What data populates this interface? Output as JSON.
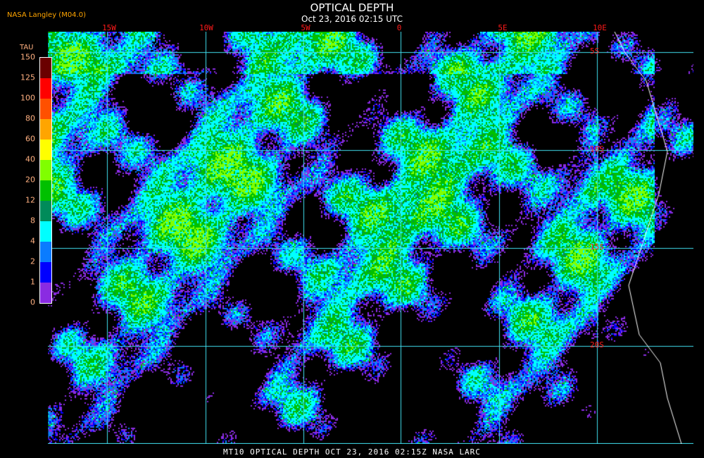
{
  "header": {
    "title": "OPTICAL DEPTH",
    "subtitle": "Oct 23, 2016 02:15 UTC",
    "credit": "NASA Langley (M04.0)"
  },
  "map": {
    "longitude_labels": [
      "15W",
      "10W",
      "5W",
      "0",
      "5E",
      "10E"
    ],
    "latitude_labels": [
      "5S",
      "10S",
      "15S",
      "20S"
    ],
    "grid_color": "#40e0f0",
    "label_color": "#ff1a1a"
  },
  "colorbar": {
    "title": "TAU",
    "labels": [
      "0",
      "1",
      "2",
      "4",
      "8",
      "12",
      "20",
      "40",
      "60",
      "80",
      "100",
      "125",
      "150"
    ],
    "colors": [
      "#8a2be2",
      "#0000ff",
      "#0a7cff",
      "#00ffff",
      "#008b5a",
      "#00c000",
      "#80ff00",
      "#ffff00",
      "#ffa500",
      "#ff5000",
      "#ff0000",
      "#6a0000"
    ]
  },
  "footer": "MT10  OPTICAL DEPTH  OCT 23, 2016 02:15Z  NASA LARC"
}
